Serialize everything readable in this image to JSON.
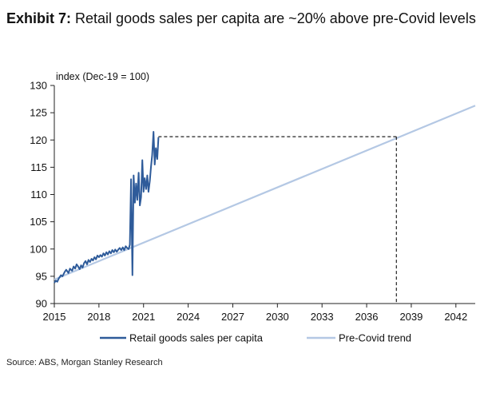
{
  "header": {
    "exhibit": "Exhibit 7:",
    "title": "Retail goods sales per capita are ~20% above pre-Covid levels"
  },
  "source": "Source: ABS, Morgan Stanley Research",
  "colors": {
    "retail": "#2e5b9a",
    "trend": "#b4c8e4",
    "axis": "#222222",
    "reference": "#222222"
  },
  "chart_data": {
    "type": "line",
    "title": "Retail goods sales per capita are ~20% above pre-Covid levels",
    "ylabel": "index (Dec-19 = 100)",
    "xlabel": "",
    "xlim": [
      2015,
      2043.3
    ],
    "ylim": [
      90,
      130
    ],
    "x_ticks": [
      "2015",
      "2018",
      "2021",
      "2024",
      "2027",
      "2030",
      "2033",
      "2036",
      "2039",
      "2042"
    ],
    "y_ticks": [
      "90",
      "95",
      "100",
      "105",
      "110",
      "115",
      "120",
      "125",
      "130"
    ],
    "legend_position": "bottom",
    "grid": false,
    "series": [
      {
        "name": "Retail goods sales per capita",
        "x": [
          2015.0,
          2015.1,
          2015.2,
          2015.3,
          2015.45,
          2015.55,
          2015.7,
          2015.8,
          2015.95,
          2016.05,
          2016.2,
          2016.3,
          2016.4,
          2016.5,
          2016.6,
          2016.7,
          2016.8,
          2016.9,
          2017.0,
          2017.1,
          2017.2,
          2017.3,
          2017.4,
          2017.5,
          2017.6,
          2017.7,
          2017.8,
          2017.9,
          2018.0,
          2018.1,
          2018.2,
          2018.3,
          2018.4,
          2018.5,
          2018.6,
          2018.7,
          2018.8,
          2018.9,
          2019.0,
          2019.1,
          2019.2,
          2019.3,
          2019.4,
          2019.5,
          2019.6,
          2019.7,
          2019.8,
          2019.9,
          2020.0,
          2020.08,
          2020.16,
          2020.25,
          2020.33,
          2020.42,
          2020.5,
          2020.58,
          2020.67,
          2020.75,
          2020.83,
          2020.92,
          2021.0,
          2021.08,
          2021.17,
          2021.25,
          2021.33,
          2021.42,
          2021.5,
          2021.58,
          2021.67,
          2021.75,
          2021.83,
          2021.92,
          2022.0
        ],
        "values": [
          93.8,
          94.2,
          94.0,
          94.6,
          95.2,
          95.0,
          95.8,
          96.2,
          95.6,
          96.4,
          96.0,
          96.8,
          96.4,
          97.2,
          96.8,
          96.3,
          97.0,
          96.6,
          97.4,
          97.8,
          97.2,
          98.0,
          97.6,
          98.2,
          97.9,
          98.5,
          98.1,
          98.8,
          98.5,
          98.9,
          98.6,
          99.2,
          98.8,
          99.4,
          99.0,
          99.6,
          99.2,
          99.8,
          99.4,
          99.9,
          99.5,
          99.9,
          100.2,
          99.8,
          100.3,
          99.8,
          100.5,
          100.2,
          100.0,
          100.8,
          112.8,
          95.2,
          113.5,
          108.5,
          112.0,
          109.0,
          114.0,
          108.0,
          109.5,
          116.3,
          110.5,
          113.0,
          111.0,
          113.5,
          110.5,
          112.5,
          115.0,
          117.2,
          121.5,
          115.5,
          118.5,
          116.5,
          120.5
        ]
      },
      {
        "name": "Pre-Covid trend",
        "x": [
          2015.0,
          2043.3
        ],
        "values": [
          94.4,
          126.3
        ]
      }
    ],
    "reference_lines": {
      "level": 120.6,
      "x_from": 2022.0,
      "x_to": 2038.0
    }
  }
}
